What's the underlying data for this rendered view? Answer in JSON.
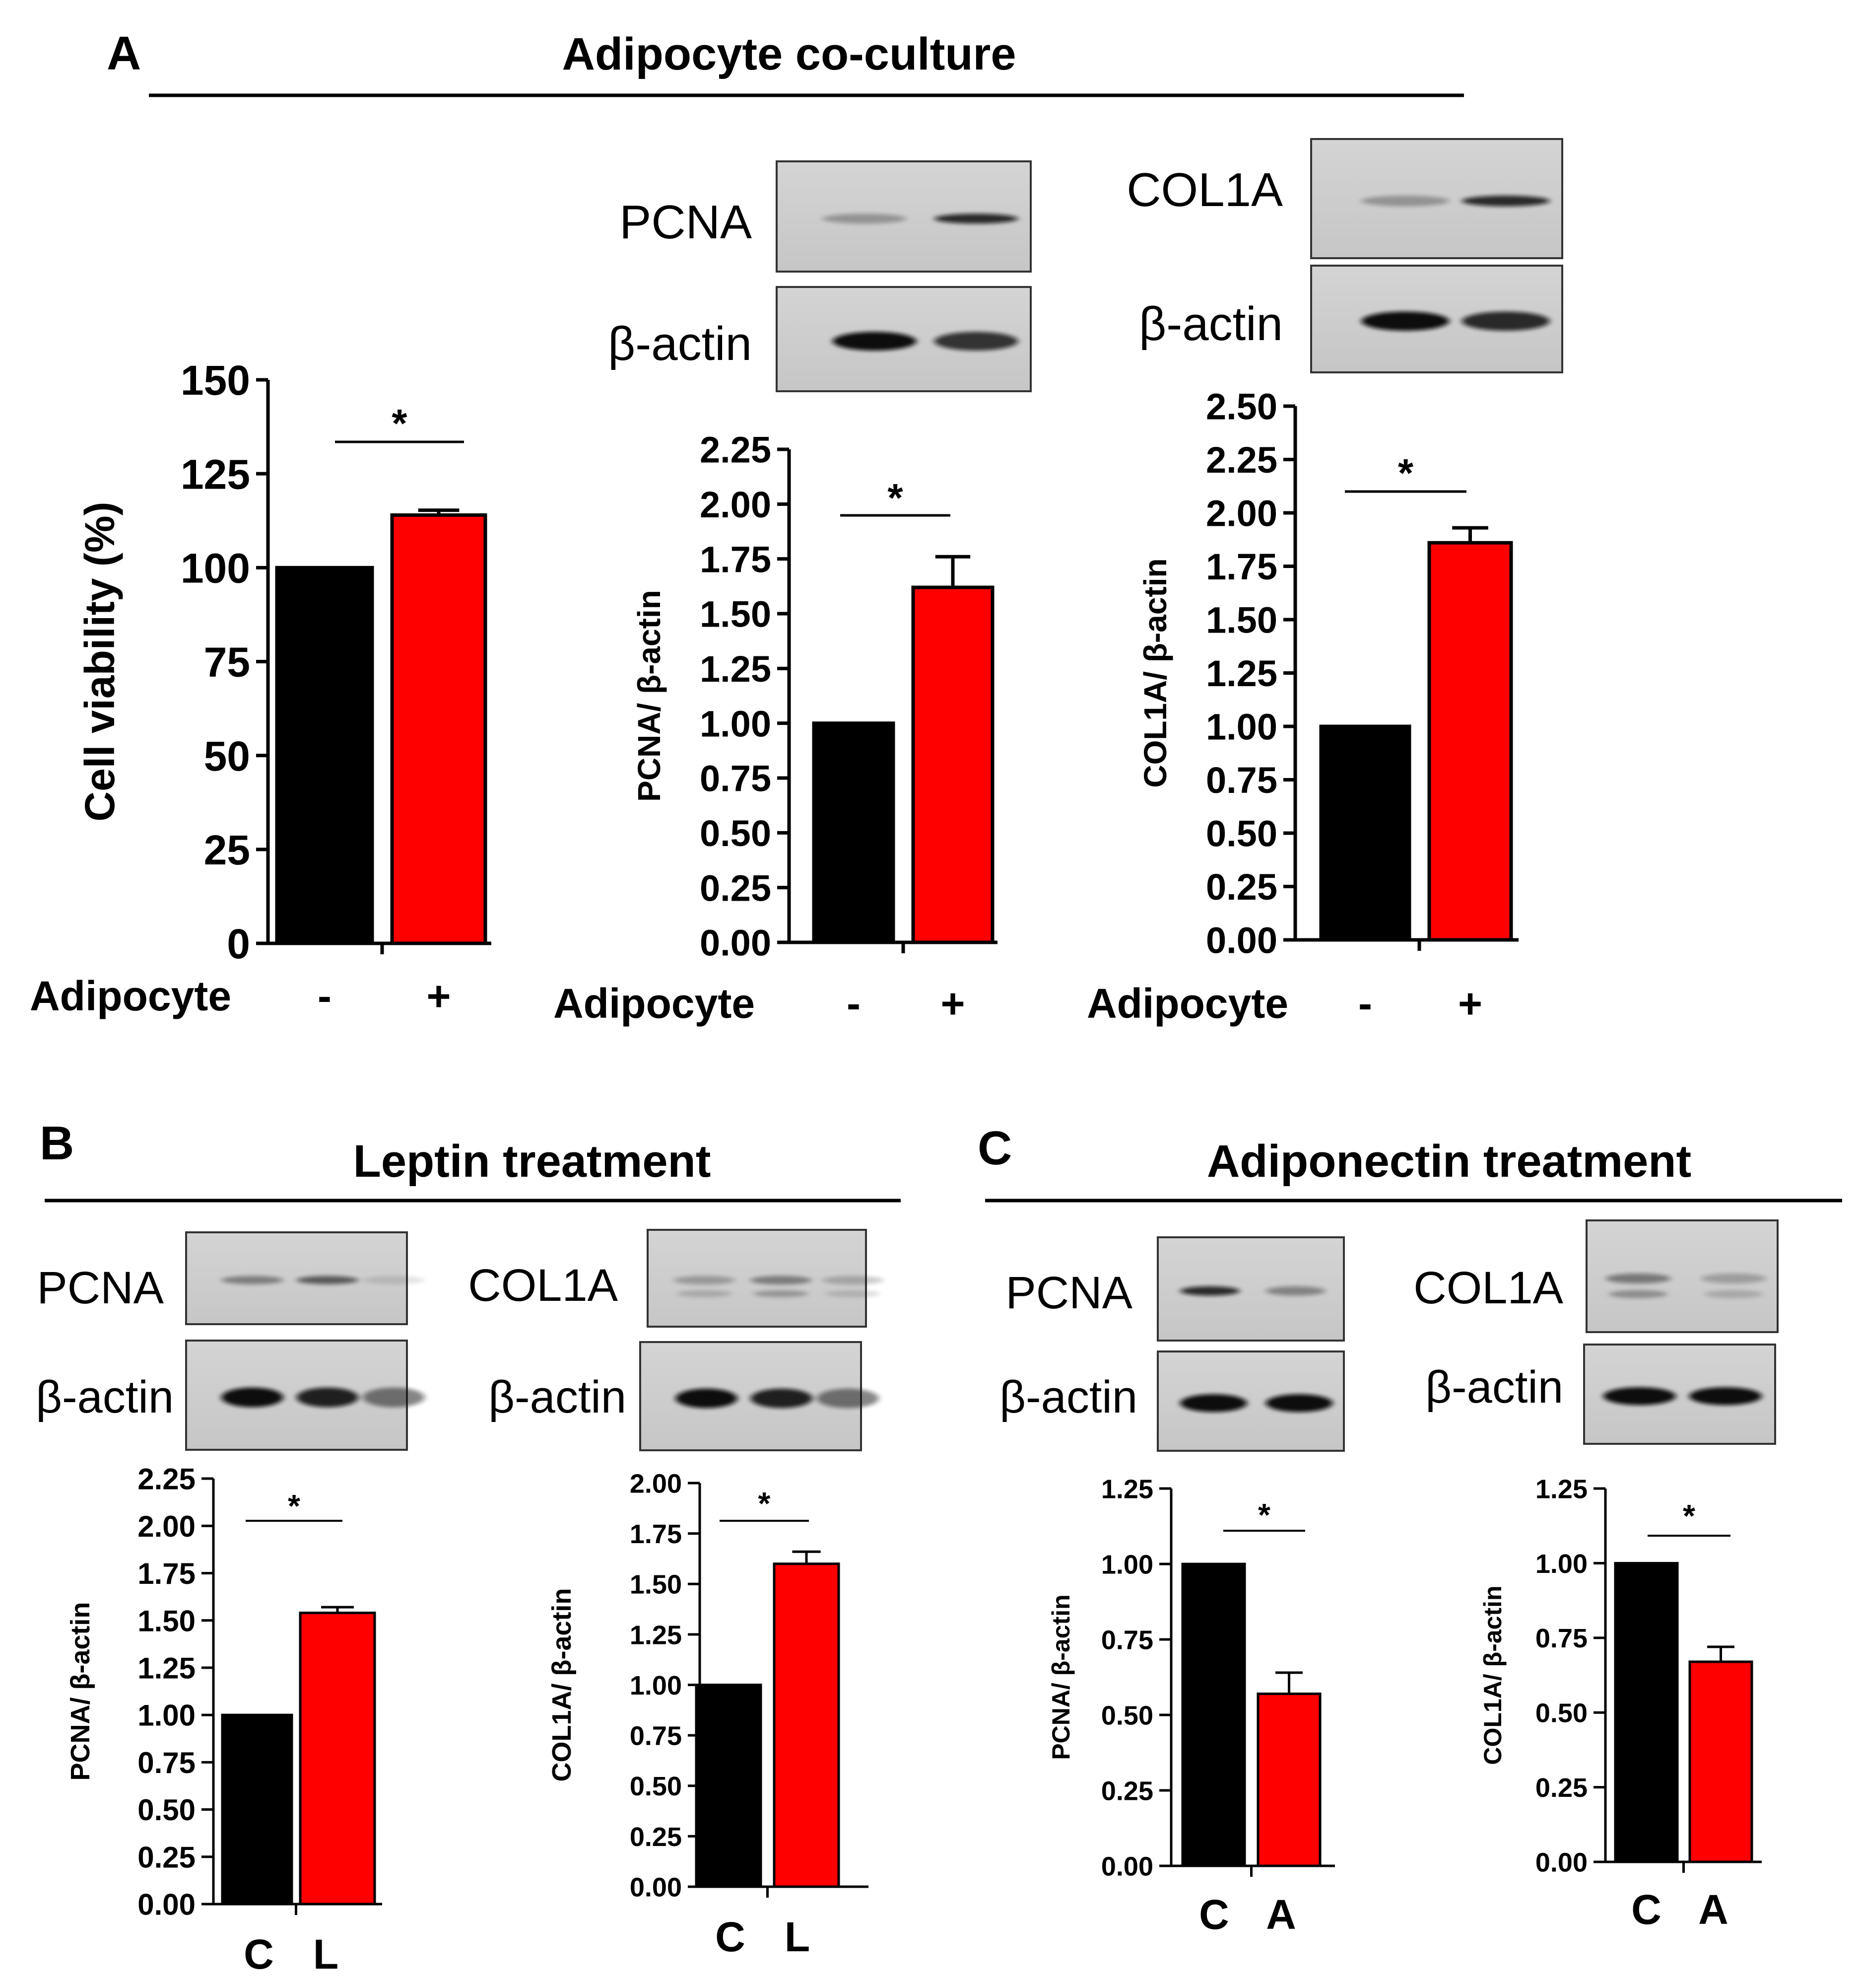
{
  "panels": {
    "A": {
      "letter": "A",
      "title": "Adipocyte co-culture"
    },
    "B": {
      "letter": "B",
      "title": "Leptin treatment"
    },
    "C": {
      "letter": "C",
      "title": "Adiponectin treatment"
    }
  },
  "blots": [
    {
      "id": "a-pcna",
      "label": "PCNA",
      "bands": [
        0.35,
        1.0
      ],
      "intensity": 0.85
    },
    {
      "id": "a-pcna-actin",
      "label": "β-actin",
      "bands": [
        1.0,
        0.8
      ],
      "intensity": 1.0
    },
    {
      "id": "a-col",
      "label": "COL1A",
      "bands": [
        0.35,
        1.0
      ],
      "intensity": 0.85
    },
    {
      "id": "a-col-actin",
      "label": "β-actin",
      "bands": [
        1.0,
        0.85
      ],
      "intensity": 1.0
    },
    {
      "id": "b-pcna",
      "label": "PCNA",
      "bands": [
        0.55,
        0.8,
        0.15
      ],
      "intensity": 0.75
    },
    {
      "id": "b-pcna-actin",
      "label": "β-actin",
      "bands": [
        1.0,
        0.9,
        0.5
      ],
      "intensity": 1.0
    },
    {
      "id": "b-col",
      "label": "COL1A",
      "bands": [
        0.45,
        0.7,
        0.35
      ],
      "intensity": 0.6
    },
    {
      "id": "b-col-actin",
      "label": "β-actin",
      "bands": [
        1.0,
        0.9,
        0.5
      ],
      "intensity": 1.0
    },
    {
      "id": "c-pcna",
      "label": "PCNA",
      "bands": [
        1.0,
        0.45
      ],
      "intensity": 0.85
    },
    {
      "id": "c-pcna-actin",
      "label": "β-actin",
      "bands": [
        1.0,
        1.0
      ],
      "intensity": 1.0
    },
    {
      "id": "c-col",
      "label": "COL1A",
      "bands": [
        0.8,
        0.45
      ],
      "intensity": 0.55
    },
    {
      "id": "c-col-actin",
      "label": "β-actin",
      "bands": [
        1.0,
        1.0
      ],
      "intensity": 1.0
    }
  ],
  "colors": {
    "control": "#000000",
    "treatment": "#ff0000",
    "axis": "#000000"
  },
  "chart_data": [
    {
      "id": "a1",
      "type": "bar",
      "ylabel": "Cell viability (%)",
      "xlabel": "Adipocyte",
      "categories": [
        "-",
        "+"
      ],
      "values": [
        100,
        114
      ],
      "errors": [
        0,
        1.3
      ],
      "ylim": [
        0,
        150
      ],
      "ticks": [
        "0",
        "25",
        "50",
        "75",
        "100",
        "125",
        "150"
      ],
      "significance": "*"
    },
    {
      "id": "a2",
      "type": "bar",
      "ylabel": "PCNA/ β-actin",
      "xlabel": "Adipocyte",
      "categories": [
        "-",
        "+"
      ],
      "values": [
        1.0,
        1.62
      ],
      "errors": [
        0,
        0.14
      ],
      "ylim": [
        0,
        2.25
      ],
      "ticks": [
        "0.00",
        "0.25",
        "0.50",
        "0.75",
        "1.00",
        "1.25",
        "1.50",
        "1.75",
        "2.00",
        "2.25"
      ],
      "significance": "*"
    },
    {
      "id": "a3",
      "type": "bar",
      "ylabel": "COL1A/ β-actin",
      "xlabel": "Adipocyte",
      "categories": [
        "-",
        "+"
      ],
      "values": [
        1.0,
        1.86
      ],
      "errors": [
        0,
        0.07
      ],
      "ylim": [
        0,
        2.5
      ],
      "ticks": [
        "0.00",
        "0.25",
        "0.50",
        "0.75",
        "1.00",
        "1.25",
        "1.50",
        "1.75",
        "2.00",
        "2.25",
        "2.50"
      ],
      "significance": "*"
    },
    {
      "id": "b1",
      "type": "bar",
      "ylabel": "PCNA/ β-actin",
      "xlabel": "",
      "categories": [
        "C",
        "L"
      ],
      "values": [
        1.0,
        1.54
      ],
      "errors": [
        0,
        0.03
      ],
      "ylim": [
        0,
        2.25
      ],
      "ticks": [
        "0.00",
        "0.25",
        "0.50",
        "0.75",
        "1.00",
        "1.25",
        "1.50",
        "1.75",
        "2.00",
        "2.25"
      ],
      "significance": "*"
    },
    {
      "id": "b2",
      "type": "bar",
      "ylabel": "COL1A/ β-actin",
      "xlabel": "",
      "categories": [
        "C",
        "L"
      ],
      "values": [
        1.0,
        1.6
      ],
      "errors": [
        0,
        0.06
      ],
      "ylim": [
        0,
        2.0
      ],
      "ticks": [
        "0.00",
        "0.25",
        "0.50",
        "0.75",
        "1.00",
        "1.25",
        "1.50",
        "1.75",
        "2.00"
      ],
      "significance": "*"
    },
    {
      "id": "c1",
      "type": "bar",
      "ylabel": "PCNA/ β-actin",
      "xlabel": "",
      "categories": [
        "C",
        "A"
      ],
      "values": [
        1.0,
        0.57
      ],
      "errors": [
        0,
        0.07
      ],
      "ylim": [
        0,
        1.25
      ],
      "ticks": [
        "0.00",
        "0.25",
        "0.50",
        "0.75",
        "1.00",
        "1.25"
      ],
      "significance": "*"
    },
    {
      "id": "c2",
      "type": "bar",
      "ylabel": "COL1A/ β-actin",
      "xlabel": "",
      "categories": [
        "C",
        "A"
      ],
      "values": [
        1.0,
        0.67
      ],
      "errors": [
        0,
        0.05
      ],
      "ylim": [
        0,
        1.25
      ],
      "ticks": [
        "0.00",
        "0.25",
        "0.50",
        "0.75",
        "1.00",
        "1.25"
      ],
      "significance": "*"
    }
  ]
}
